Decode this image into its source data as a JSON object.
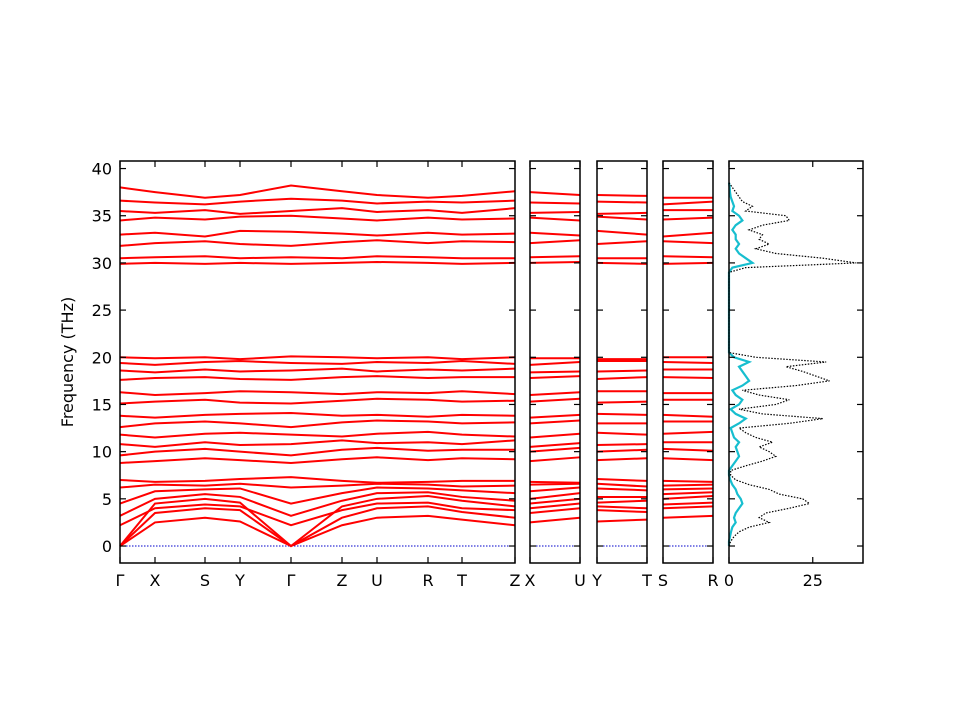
{
  "chart_data": [
    {
      "type": "band",
      "ylabel": "Frequency (THz)",
      "color": "#ff0000",
      "hlines": [
        0
      ],
      "hline_color": "#0000cc",
      "x": [
        0,
        35,
        85,
        120,
        171,
        222,
        257,
        308,
        342,
        395
      ],
      "xlim": [
        0,
        395
      ],
      "xticks": [
        {
          "value": 0,
          "label": "Γ"
        },
        {
          "value": 35,
          "label": "X"
        },
        {
          "value": 85,
          "label": "S"
        },
        {
          "value": 120,
          "label": "Y"
        },
        {
          "value": 171,
          "label": "Γ"
        },
        {
          "value": 222,
          "label": "Z"
        },
        {
          "value": 257,
          "label": "U"
        },
        {
          "value": 308,
          "label": "R"
        },
        {
          "value": 342,
          "label": "T"
        },
        {
          "value": 395,
          "label": "Z"
        }
      ],
      "ylim": [
        -1.8,
        40.8
      ],
      "yticks": [
        0,
        5,
        10,
        15,
        20,
        25,
        30,
        35,
        40
      ],
      "bands": [
        [
          0,
          2.5,
          3,
          2.6,
          0,
          2.2,
          3,
          3.2,
          2.8,
          2.2
        ],
        [
          0,
          3.5,
          4,
          3.8,
          0,
          3,
          4,
          4.2,
          3.6,
          3
        ],
        [
          0,
          4.5,
          5,
          4.6,
          0,
          4.2,
          5,
          5.3,
          4.8,
          4.2
        ],
        [
          2.2,
          4,
          4.4,
          4.2,
          2.2,
          3.8,
          4.5,
          4.6,
          4,
          3.8
        ],
        [
          3.2,
          5,
          5.5,
          5.2,
          3.2,
          4.8,
          5.6,
          5.7,
          5.2,
          4.8
        ],
        [
          4.5,
          5.8,
          6,
          6.1,
          4.5,
          5.6,
          6.2,
          6.1,
          5.9,
          5.6
        ],
        [
          6.2,
          6.5,
          6.4,
          6.6,
          6.2,
          6.4,
          6.6,
          6.5,
          6.3,
          6.4
        ],
        [
          7,
          6.8,
          6.9,
          7.1,
          7.3,
          6.9,
          6.7,
          6.8,
          6.9,
          6.9
        ],
        [
          8.8,
          9,
          9.3,
          9.1,
          8.8,
          9.2,
          9.4,
          9.1,
          9.3,
          9.2
        ],
        [
          9.6,
          10,
          10.3,
          10,
          9.6,
          10.2,
          10.4,
          10.1,
          10.2,
          10.2
        ],
        [
          10.8,
          10.5,
          11,
          10.7,
          10.8,
          11.2,
          10.9,
          11,
          10.8,
          11.2
        ],
        [
          11.8,
          11.5,
          11.9,
          12,
          11.8,
          11.6,
          11.9,
          12.1,
          11.8,
          11.6
        ],
        [
          12.6,
          13,
          13.2,
          13,
          12.6,
          13.1,
          13.3,
          13.2,
          13,
          13.1
        ],
        [
          13.8,
          13.6,
          13.9,
          14,
          14.1,
          13.8,
          13.9,
          13.7,
          13.9,
          13.8
        ],
        [
          15.1,
          15.3,
          15.5,
          15.2,
          15.1,
          15.4,
          15.6,
          15.5,
          15.3,
          15.4
        ],
        [
          16.3,
          16,
          16.2,
          16.4,
          16.3,
          16.1,
          16.3,
          16.2,
          16.4,
          16.1
        ],
        [
          17.6,
          17.8,
          17.9,
          17.7,
          17.6,
          17.9,
          18,
          17.8,
          17.9,
          17.9
        ],
        [
          18.6,
          18.4,
          18.7,
          18.5,
          18.6,
          18.8,
          18.5,
          18.7,
          18.6,
          18.8
        ],
        [
          19.4,
          19.2,
          19.5,
          19.6,
          19.4,
          19.3,
          19.5,
          19.4,
          19.6,
          19.3
        ],
        [
          20,
          19.9,
          20,
          19.8,
          20.1,
          20,
          19.9,
          20,
          19.8,
          20
        ],
        [
          29.9,
          30,
          29.9,
          30,
          29.9,
          30,
          30.1,
          30,
          29.9,
          30
        ],
        [
          30.5,
          30.6,
          30.7,
          30.5,
          30.6,
          30.5,
          30.7,
          30.6,
          30.5,
          30.5
        ],
        [
          31.8,
          32.1,
          32.3,
          32,
          31.8,
          32.2,
          32.4,
          32.1,
          32.3,
          32.2
        ],
        [
          33,
          33.2,
          32.8,
          33.4,
          33.3,
          33.1,
          32.9,
          33.2,
          33,
          33.1
        ],
        [
          34.5,
          34.8,
          34.6,
          34.9,
          35,
          34.7,
          34.5,
          34.8,
          34.6,
          34.7
        ],
        [
          35.5,
          35.3,
          35.6,
          35.2,
          35.5,
          35.8,
          35.4,
          35.6,
          35.3,
          35.8
        ],
        [
          36.6,
          36.4,
          36.2,
          36.5,
          36.8,
          36.6,
          36.3,
          36.5,
          36.4,
          36.6
        ],
        [
          38,
          37.5,
          36.9,
          37.2,
          38.2,
          37.6,
          37.2,
          36.9,
          37.1,
          37.6
        ]
      ]
    },
    {
      "type": "band",
      "color": "#ff0000",
      "hlines": [
        0
      ],
      "hline_color": "#0000cc",
      "x": [
        0,
        50
      ],
      "xlim": [
        0,
        50
      ],
      "xticks": [
        {
          "value": 0,
          "label": "X"
        },
        {
          "value": 50,
          "label": "U"
        }
      ],
      "ylim": [
        -1.8,
        40.8
      ],
      "yticks": [
        0,
        5,
        10,
        15,
        20,
        25,
        30,
        35,
        40
      ],
      "bands": [
        [
          2.5,
          3
        ],
        [
          3.5,
          4
        ],
        [
          4.5,
          5
        ],
        [
          4,
          4.5
        ],
        [
          5,
          5.6
        ],
        [
          5.8,
          6.2
        ],
        [
          6.5,
          6.6
        ],
        [
          6.8,
          6.7
        ],
        [
          9,
          9.4
        ],
        [
          10,
          10.4
        ],
        [
          10.5,
          10.9
        ],
        [
          11.5,
          11.9
        ],
        [
          13,
          13.3
        ],
        [
          13.6,
          13.9
        ],
        [
          15.3,
          15.6
        ],
        [
          16,
          16.3
        ],
        [
          17.8,
          18
        ],
        [
          18.4,
          18.5
        ],
        [
          19.2,
          19.5
        ],
        [
          19.9,
          19.9
        ],
        [
          30,
          30.1
        ],
        [
          30.6,
          30.7
        ],
        [
          32.1,
          32.4
        ],
        [
          33.2,
          32.9
        ],
        [
          34.8,
          34.5
        ],
        [
          35.3,
          35.4
        ],
        [
          36.4,
          36.3
        ],
        [
          37.5,
          37.2
        ]
      ]
    },
    {
      "type": "band",
      "color": "#ff0000",
      "hlines": [
        0
      ],
      "hline_color": "#0000cc",
      "x": [
        0,
        50
      ],
      "xlim": [
        0,
        50
      ],
      "xticks": [
        {
          "value": 0,
          "label": "Y"
        },
        {
          "value": 50,
          "label": "T"
        }
      ],
      "ylim": [
        -1.8,
        40.8
      ],
      "yticks": [
        0,
        5,
        10,
        15,
        20,
        25,
        30,
        35,
        40
      ],
      "bands": [
        [
          2.6,
          2.8
        ],
        [
          3.8,
          3.6
        ],
        [
          4.6,
          4.8
        ],
        [
          4.2,
          4
        ],
        [
          5.2,
          5.2
        ],
        [
          6.1,
          5.9
        ],
        [
          6.6,
          6.3
        ],
        [
          7.1,
          6.9
        ],
        [
          9.1,
          9.3
        ],
        [
          10,
          10.2
        ],
        [
          10.7,
          10.8
        ],
        [
          12,
          11.8
        ],
        [
          13,
          13
        ],
        [
          14,
          13.9
        ],
        [
          15.2,
          15.3
        ],
        [
          16.4,
          16.4
        ],
        [
          17.7,
          17.9
        ],
        [
          18.5,
          18.6
        ],
        [
          19.6,
          19.6
        ],
        [
          19.8,
          19.8
        ],
        [
          30,
          29.9
        ],
        [
          30.5,
          30.5
        ],
        [
          32,
          32.3
        ],
        [
          33.4,
          33
        ],
        [
          34.9,
          34.6
        ],
        [
          35.2,
          35.3
        ],
        [
          36.5,
          36.4
        ],
        [
          37.2,
          37.1
        ]
      ]
    },
    {
      "type": "band",
      "color": "#ff0000",
      "hlines": [
        0
      ],
      "hline_color": "#0000cc",
      "x": [
        0,
        50
      ],
      "xlim": [
        0,
        50
      ],
      "xticks": [
        {
          "value": 0,
          "label": "S"
        },
        {
          "value": 50,
          "label": "R"
        }
      ],
      "ylim": [
        -1.8,
        40.8
      ],
      "yticks": [
        0,
        5,
        10,
        15,
        20,
        25,
        30,
        35,
        40
      ],
      "bands": [
        [
          3,
          3.2
        ],
        [
          4,
          4.2
        ],
        [
          5,
          5.3
        ],
        [
          4.4,
          4.6
        ],
        [
          5.5,
          5.7
        ],
        [
          6,
          6.1
        ],
        [
          6.4,
          6.5
        ],
        [
          6.9,
          6.8
        ],
        [
          9.3,
          9.1
        ],
        [
          10.3,
          10.1
        ],
        [
          11,
          11
        ],
        [
          11.9,
          12.1
        ],
        [
          13.2,
          13.2
        ],
        [
          13.9,
          13.7
        ],
        [
          15.5,
          15.5
        ],
        [
          16.2,
          16.2
        ],
        [
          17.9,
          17.8
        ],
        [
          18.7,
          18.7
        ],
        [
          19.5,
          19.4
        ],
        [
          20,
          20
        ],
        [
          29.9,
          30
        ],
        [
          30.7,
          30.6
        ],
        [
          32.3,
          32.1
        ],
        [
          32.8,
          33.2
        ],
        [
          34.6,
          34.8
        ],
        [
          35.6,
          35.6
        ],
        [
          36.2,
          36.5
        ],
        [
          36.9,
          36.9
        ]
      ]
    },
    {
      "type": "dos",
      "xlim": [
        0,
        40
      ],
      "xticks": [
        0,
        25
      ],
      "ylim": [
        -1.8,
        40.8
      ],
      "yticks": [
        0,
        5,
        10,
        15,
        20,
        25,
        30,
        35,
        40
      ],
      "y": [
        0,
        0.5,
        1,
        1.5,
        2,
        2.5,
        3,
        3.5,
        4,
        4.5,
        5,
        5.5,
        6,
        6.5,
        7,
        7.5,
        8,
        8.5,
        9,
        9.5,
        10,
        10.5,
        11,
        11.5,
        12,
        12.5,
        13,
        13.5,
        14,
        14.5,
        15,
        15.5,
        16,
        16.5,
        17,
        17.5,
        18,
        18.5,
        19,
        19.5,
        20,
        20.5,
        21,
        21.5,
        22,
        22.5,
        23,
        23.5,
        24,
        24.5,
        25,
        25.5,
        26,
        26.5,
        27,
        27.5,
        28,
        28.5,
        29,
        29.5,
        30,
        30.5,
        31,
        31.5,
        32,
        32.5,
        33,
        33.5,
        34,
        34.5,
        35,
        35.5,
        36,
        36.5,
        37,
        37.5,
        38,
        38.5
      ],
      "series": [
        {
          "color": "#17becf",
          "style": "solid",
          "values": [
            0,
            0,
            0.3,
            0.6,
            1,
            2,
            1.5,
            2,
            3,
            4,
            3.5,
            2.5,
            2,
            1,
            0.4,
            0,
            0,
            1,
            2,
            3,
            2.5,
            2,
            3,
            1.5,
            1,
            0.5,
            3,
            5,
            2,
            0.5,
            3,
            4,
            2,
            1,
            4,
            6,
            5,
            4,
            3,
            6,
            1.5,
            0,
            0,
            0,
            0,
            0,
            0,
            0,
            0,
            0,
            0,
            0,
            0,
            0,
            0,
            0,
            0,
            0,
            0,
            1,
            7,
            5,
            3,
            2,
            3,
            2,
            2,
            1,
            2,
            4,
            3,
            1,
            1.5,
            1,
            0.5,
            0.3,
            0.2,
            0
          ]
        },
        {
          "color": "#000000",
          "style": "dotted",
          "values": [
            0,
            0.5,
            1.5,
            3,
            6,
            12,
            9,
            11,
            18,
            24,
            22,
            15,
            12,
            6,
            2,
            0.5,
            0.5,
            5,
            10,
            14,
            12,
            9,
            13,
            8,
            5,
            3,
            18,
            28,
            10,
            3,
            14,
            18,
            9,
            4,
            20,
            30,
            26,
            22,
            17,
            29,
            8,
            0,
            0,
            0,
            0,
            0,
            0,
            0,
            0,
            0,
            0,
            0,
            0,
            0,
            0,
            0,
            0,
            0,
            0,
            5,
            38,
            28,
            14,
            8,
            12,
            9,
            10,
            6,
            10,
            18,
            17,
            5,
            7,
            4,
            3,
            2,
            1,
            0
          ]
        }
      ]
    }
  ]
}
